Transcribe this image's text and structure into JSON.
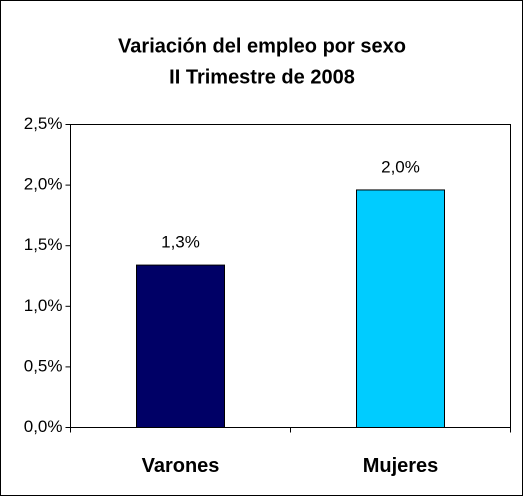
{
  "chart_data": {
    "type": "bar",
    "title": "Variación del empleo por sexo",
    "subtitle": "II Trimestre de 2008",
    "categories": [
      "Varones",
      "Mujeres"
    ],
    "values": [
      1.34,
      1.96
    ],
    "value_labels": [
      "1,3%",
      "2,0%"
    ],
    "colors": [
      "#000066",
      "#00ccff"
    ],
    "ylim": [
      0,
      2.5
    ],
    "yticks": [
      {
        "value": 0,
        "label": "0,0%"
      },
      {
        "value": 0.5,
        "label": "0,5%"
      },
      {
        "value": 1,
        "label": "1,0%"
      },
      {
        "value": 1.5,
        "label": "1,5%"
      },
      {
        "value": 2,
        "label": "2,0%"
      },
      {
        "value": 2.5,
        "label": "2,5%"
      }
    ],
    "grid": false
  }
}
